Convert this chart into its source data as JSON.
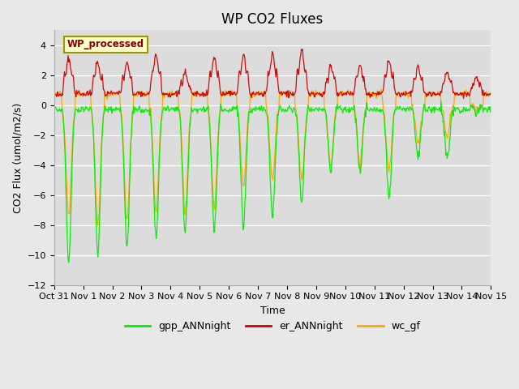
{
  "title": "WP CO2 Fluxes",
  "xlabel": "Time",
  "ylabel": "CO2 Flux (umol/m2/s)",
  "ylim": [
    -12,
    5
  ],
  "yticks": [
    -12,
    -10,
    -8,
    -6,
    -4,
    -2,
    0,
    2,
    4
  ],
  "fig_bg_color": "#e8e8e8",
  "plot_bg_color": "#dcdcdc",
  "grid_color": "#ffffff",
  "gpp_color": "#00ee00",
  "er_color": "#cc0000",
  "wc_color": "#ffa500",
  "annot_box_fc": "#ffffcc",
  "annot_box_ec": "#999900",
  "annot_text_color": "#880000",
  "tick_fontsize": 8,
  "title_fontsize": 12,
  "label_fontsize": 9,
  "legend_fontsize": 9,
  "n_points": 720,
  "gpp_amps": [
    10.5,
    10.0,
    9.5,
    8.8,
    8.5,
    8.3,
    8.0,
    7.5,
    6.5,
    4.5,
    4.5,
    6.2,
    3.5,
    3.5,
    0.5
  ],
  "wc_amps": [
    7.5,
    8.0,
    7.8,
    7.0,
    7.0,
    6.8,
    5.5,
    5.0,
    5.0,
    4.0,
    4.0,
    4.5,
    2.5,
    2.2,
    0.3
  ],
  "er_amps": [
    2.5,
    2.2,
    2.2,
    2.7,
    1.5,
    2.5,
    2.7,
    2.8,
    3.0,
    2.0,
    2.0,
    2.3,
    2.0,
    1.5,
    1.2
  ]
}
